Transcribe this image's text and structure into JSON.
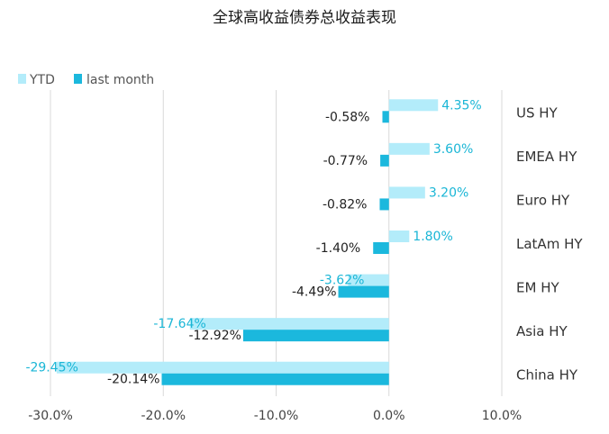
{
  "chart_data": {
    "type": "bar",
    "orientation": "horizontal",
    "title": "全球高收益债券总收益表现",
    "categories": [
      "US HY",
      "EMEA HY",
      "Euro HY",
      "LatAm HY",
      "EM HY",
      "Asia HY",
      "China HY"
    ],
    "series": [
      {
        "name": "YTD",
        "color": "#b3ecfa",
        "values": [
          4.35,
          3.6,
          3.2,
          1.8,
          -3.62,
          -17.64,
          -29.45
        ],
        "labels": [
          "4.35%",
          "3.60%",
          "3.20%",
          "1.80%",
          "-3.62%",
          "-17.64%",
          "-29.45%"
        ]
      },
      {
        "name": "last month",
        "color": "#1bb8dd",
        "values": [
          -0.58,
          -0.77,
          -0.82,
          -1.4,
          -4.49,
          -12.92,
          -20.14
        ],
        "labels": [
          "-0.58%",
          "-0.77%",
          "-0.82%",
          "-1.40%",
          "-4.49%",
          "-12.92%",
          "-20.14%"
        ]
      }
    ],
    "x_ticks": [
      -30,
      -20,
      -10,
      0,
      10
    ],
    "x_tick_labels": [
      "-30.0%",
      "-20.0%",
      "-10.0%",
      "0.0%",
      "10.0%"
    ],
    "xlim": [
      -30,
      10
    ],
    "legend_position": "top-left",
    "grid": "vertical",
    "category_axis": "right"
  }
}
